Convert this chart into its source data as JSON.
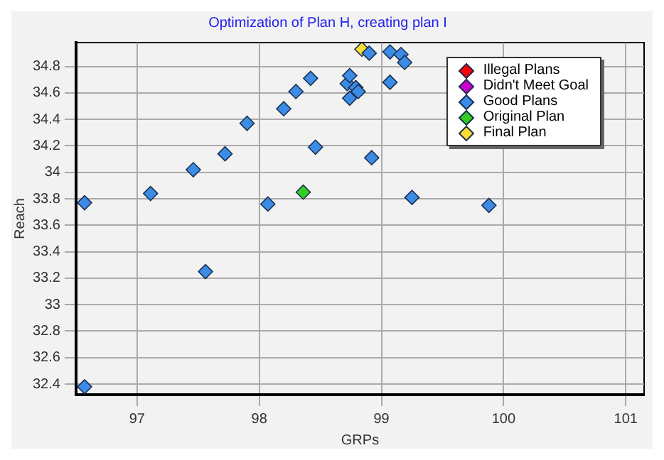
{
  "chart_data": {
    "type": "scatter",
    "title": "Optimization of Plan H, creating plan I",
    "xlabel": "GRPs",
    "ylabel": "Reach",
    "xlim": [
      96.5,
      101.15
    ],
    "xticks": [
      97,
      98,
      99,
      100,
      101
    ],
    "ylim": [
      32.32,
      34.98
    ],
    "yticks": [
      {
        "value": 32.4,
        "label": "32.4"
      },
      {
        "value": 32.6,
        "label": "32.6"
      },
      {
        "value": 32.8,
        "label": "32.8"
      },
      {
        "value": 33,
        "label": "33"
      },
      {
        "value": 33.2,
        "label": "33.2"
      },
      {
        "value": 33.4,
        "label": "33.4"
      },
      {
        "value": 33.6,
        "label": "33.6"
      },
      {
        "value": 33.8,
        "label": "33.8"
      },
      {
        "value": 34,
        "label": "34"
      },
      {
        "value": 34.2,
        "label": "34.2"
      },
      {
        "value": 34.4,
        "label": "34.4"
      },
      {
        "value": 34.6,
        "label": "34.6"
      },
      {
        "value": 34.8,
        "label": "34.8"
      }
    ],
    "grid": true,
    "legend": "top right",
    "marker": "diamond",
    "series": [
      {
        "name": "Illegal Plans",
        "color": "#ff0000"
      },
      {
        "name": "Didn't Meet Goal",
        "color": "#cc00cc"
      },
      {
        "name": "Good Plans",
        "color": "#3c8ce6",
        "x": [
          96.57,
          97.11,
          97.46,
          97.72,
          97.9,
          98.07,
          98.2,
          98.3,
          98.42,
          98.46,
          98.72,
          98.74,
          98.74,
          98.79,
          98.81,
          98.9,
          99.07,
          99.16,
          99.19,
          99.07,
          98.92,
          99.25,
          99.88,
          97.56,
          96.57
        ],
        "values": [
          33.77,
          33.84,
          34.02,
          34.14,
          34.37,
          33.76,
          34.48,
          34.61,
          34.71,
          34.19,
          34.67,
          34.56,
          34.73,
          34.64,
          34.61,
          34.9,
          34.91,
          34.89,
          34.83,
          34.68,
          34.11,
          33.81,
          33.75,
          33.25,
          32.38
        ]
      },
      {
        "name": "Original Plan",
        "color": "#33cc22",
        "x": [
          98.36
        ],
        "values": [
          33.85
        ]
      },
      {
        "name": "Final Plan",
        "color": "#ffdd33",
        "x": [
          98.84
        ],
        "values": [
          34.93
        ]
      }
    ]
  }
}
